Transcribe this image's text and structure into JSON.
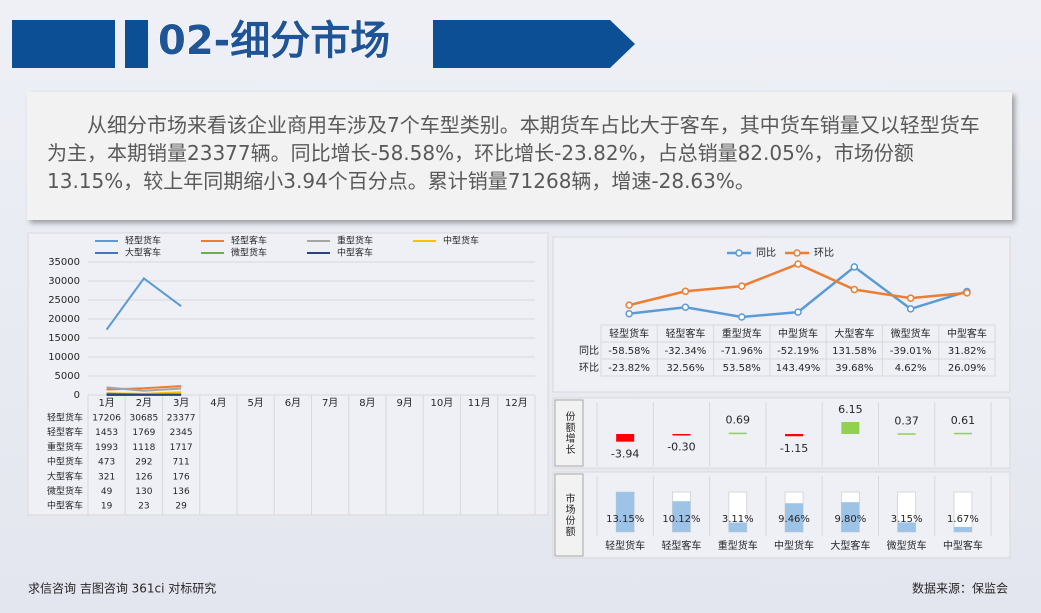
{
  "header": {
    "title": "02-细分市场"
  },
  "summary": "从细分市场来看该企业商用车涉及7个车型类别。本期货车占比大于客车，其中货车销量又以轻型货车为主，本期销量23377辆。同比增长-58.58%，环比增长-23.82%，占总销量82.05%，市场份额13.15%，较上年同期缩小3.94个百分点。累计销量71268辆，增速-28.63%。",
  "footer": {
    "left": "求信咨询 吉图咨询 361ci 对标研究",
    "right": "数据来源：保监会"
  },
  "chart_data": [
    {
      "type": "line",
      "legend": "top",
      "table": true,
      "categories": [
        "1月",
        "2月",
        "3月",
        "4月",
        "5月",
        "6月",
        "7月",
        "8月",
        "9月",
        "10月",
        "11月",
        "12月"
      ],
      "ylim": [
        0,
        35000
      ],
      "yticks": [
        0,
        5000,
        10000,
        15000,
        20000,
        25000,
        30000,
        35000
      ],
      "grid": true,
      "series": [
        {
          "name": "轻型货车",
          "color": "#5b9bd5",
          "values": [
            17206,
            30685,
            23377,
            null,
            null,
            null,
            null,
            null,
            null,
            null,
            null,
            null
          ]
        },
        {
          "name": "轻型客车",
          "color": "#ed7d31",
          "values": [
            1453,
            1769,
            2345,
            null,
            null,
            null,
            null,
            null,
            null,
            null,
            null,
            null
          ]
        },
        {
          "name": "重型货车",
          "color": "#a5a5a5",
          "values": [
            1993,
            1118,
            1717,
            null,
            null,
            null,
            null,
            null,
            null,
            null,
            null,
            null
          ]
        },
        {
          "name": "中型货车",
          "color": "#ffc000",
          "values": [
            473,
            292,
            711,
            null,
            null,
            null,
            null,
            null,
            null,
            null,
            null,
            null
          ]
        },
        {
          "name": "大型客车",
          "color": "#4472c4",
          "values": [
            321,
            126,
            176,
            null,
            null,
            null,
            null,
            null,
            null,
            null,
            null,
            null
          ]
        },
        {
          "name": "微型货车",
          "color": "#70ad47",
          "values": [
            49,
            130,
            136,
            null,
            null,
            null,
            null,
            null,
            null,
            null,
            null,
            null
          ]
        },
        {
          "name": "中型客车",
          "color": "#264478",
          "values": [
            19,
            23,
            29,
            null,
            null,
            null,
            null,
            null,
            null,
            null,
            null,
            null
          ]
        }
      ]
    },
    {
      "type": "line",
      "legend": "top",
      "table": true,
      "categories": [
        "轻型货车",
        "轻型客车",
        "重型货车",
        "中型货车",
        "大型客车",
        "微型货车",
        "中型客车"
      ],
      "series": [
        {
          "name": "同比",
          "color": "#5b9bd5",
          "values": [
            -58.58,
            -32.34,
            -71.96,
            -52.19,
            131.58,
            -39.01,
            31.82
          ],
          "value_labels": [
            "-58.58%",
            "-32.34%",
            "-71.96%",
            "-52.19%",
            "131.58%",
            "-39.01%",
            "31.82%"
          ]
        },
        {
          "name": "环比",
          "color": "#ed7d31",
          "values": [
            -23.82,
            32.56,
            53.58,
            143.49,
            39.68,
            4.62,
            26.09
          ],
          "value_labels": [
            "-23.82%",
            "32.56%",
            "53.58%",
            "143.49%",
            "39.68%",
            "4.62%",
            "26.09%"
          ]
        }
      ]
    },
    {
      "type": "bar",
      "title": "份额增长",
      "categories": [
        "轻型货车",
        "轻型客车",
        "重型货车",
        "中型货车",
        "大型客车",
        "微型货车",
        "中型客车"
      ],
      "values": [
        -3.94,
        -0.3,
        0.69,
        -1.15,
        6.15,
        0.37,
        0.61
      ],
      "value_labels": [
        "-3.94",
        "-0.30",
        "0.69",
        "-1.15",
        "6.15",
        "0.37",
        "0.61"
      ],
      "color_positive": "#92d050",
      "color_negative": "#ff0000"
    },
    {
      "type": "share",
      "title": "市场份额",
      "categories": [
        "轻型货车",
        "轻型客车",
        "重型货车",
        "中型货车",
        "大型客车",
        "微型货车",
        "中型客车"
      ],
      "values": [
        13.15,
        10.12,
        3.11,
        9.46,
        9.8,
        3.15,
        1.67
      ],
      "value_labels": [
        "13.15%",
        "10.12%",
        "3.11%",
        "9.46%",
        "9.80%",
        "3.15%",
        "1.67%"
      ],
      "color": "#9dc3e6"
    }
  ]
}
